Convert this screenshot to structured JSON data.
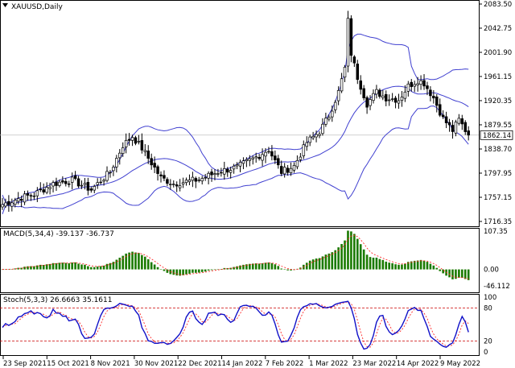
{
  "symbol_label": "XAUUSD,Daily",
  "current_price_label": "1862.14",
  "colors": {
    "bull_candle": "#000000",
    "bear_candle": "#000000",
    "bollinger": "#4040d0",
    "histogram": "#1a7a00",
    "macd_signal": "#ff2a2a",
    "stoch_main": "#1010c8",
    "stoch_signal": "#ff2a2a",
    "level_line": "#cc0000",
    "grid": "#ffffff",
    "price_line": "#c0c0c0"
  },
  "chart_data": [
    {
      "type": "candlestick",
      "title": "XAUUSD,Daily",
      "ylim": [
        1700,
        2100
      ],
      "ytick_labels": [
        "2083.50",
        "2042.75",
        "2001.90",
        "1961.15",
        "1920.35",
        "1879.55",
        "1838.70",
        "1797.95",
        "1757.15",
        "1716.35"
      ],
      "ytick_values": [
        2083.5,
        2042.75,
        2001.9,
        1961.15,
        1920.35,
        1879.55,
        1838.7,
        1797.95,
        1757.15,
        1716.35
      ],
      "last_price": 1862.14,
      "xtick_labels": [
        "23 Sep 2021",
        "15 Oct 2021",
        "8 Nov 2021",
        "30 Nov 2021",
        "22 Dec 2021",
        "14 Jan 2022",
        "7 Feb 2022",
        "1 Mar 2022",
        "23 Mar 2022",
        "14 Apr 2022",
        "9 May 2022"
      ],
      "close_anchors": [
        [
          0,
          1745
        ],
        [
          6,
          1757
        ],
        [
          10,
          1762
        ],
        [
          16,
          1780
        ],
        [
          22,
          1786
        ],
        [
          28,
          1770
        ],
        [
          34,
          1800
        ],
        [
          38,
          1845
        ],
        [
          41,
          1860
        ],
        [
          44,
          1840
        ],
        [
          47,
          1815
        ],
        [
          50,
          1790
        ],
        [
          54,
          1780
        ],
        [
          58,
          1784
        ],
        [
          62,
          1787
        ],
        [
          68,
          1800
        ],
        [
          74,
          1808
        ],
        [
          80,
          1825
        ],
        [
          84,
          1838
        ],
        [
          86,
          1818
        ],
        [
          88,
          1800
        ],
        [
          92,
          1810
        ],
        [
          96,
          1850
        ],
        [
          100,
          1868
        ],
        [
          103,
          1895
        ],
        [
          106,
          1935
        ],
        [
          108,
          1975
        ],
        [
          109,
          2055
        ],
        [
          110,
          2000
        ],
        [
          112,
          1960
        ],
        [
          115,
          1915
        ],
        [
          118,
          1935
        ],
        [
          121,
          1925
        ],
        [
          125,
          1922
        ],
        [
          128,
          1945
        ],
        [
          131,
          1955
        ],
        [
          133,
          1950
        ],
        [
          136,
          1925
        ],
        [
          139,
          1890
        ],
        [
          142,
          1870
        ],
        [
          144,
          1888
        ],
        [
          147,
          1862
        ]
      ],
      "bollinger_bands": "upper, middle, lower (Bollinger Bands)"
    },
    {
      "type": "bar",
      "title": "MACD(5,34,4) -39.137 -36.737",
      "indicator_label": "MACD(5,34,4) -39.137 -36.737",
      "ylim": [
        -50,
        115
      ],
      "ytick_labels": [
        "107.35",
        "0.00",
        "-46.112"
      ],
      "ytick_values": [
        107.35,
        0.0,
        -46.112
      ],
      "main_value": -39.137,
      "signal_value": -36.737
    },
    {
      "type": "line",
      "title": "Stoch(5,3,3) 26.6663 35.1611",
      "indicator_label": "Stoch(5,3,3) 26.6663 35.1611",
      "ylim": [
        0,
        100
      ],
      "ytick_labels": [
        "100",
        "80",
        "20",
        "0"
      ],
      "ytick_values": [
        100,
        80,
        20,
        0
      ],
      "levels": [
        80,
        20
      ],
      "main_value": 26.6663,
      "signal_value": 35.1611
    }
  ]
}
